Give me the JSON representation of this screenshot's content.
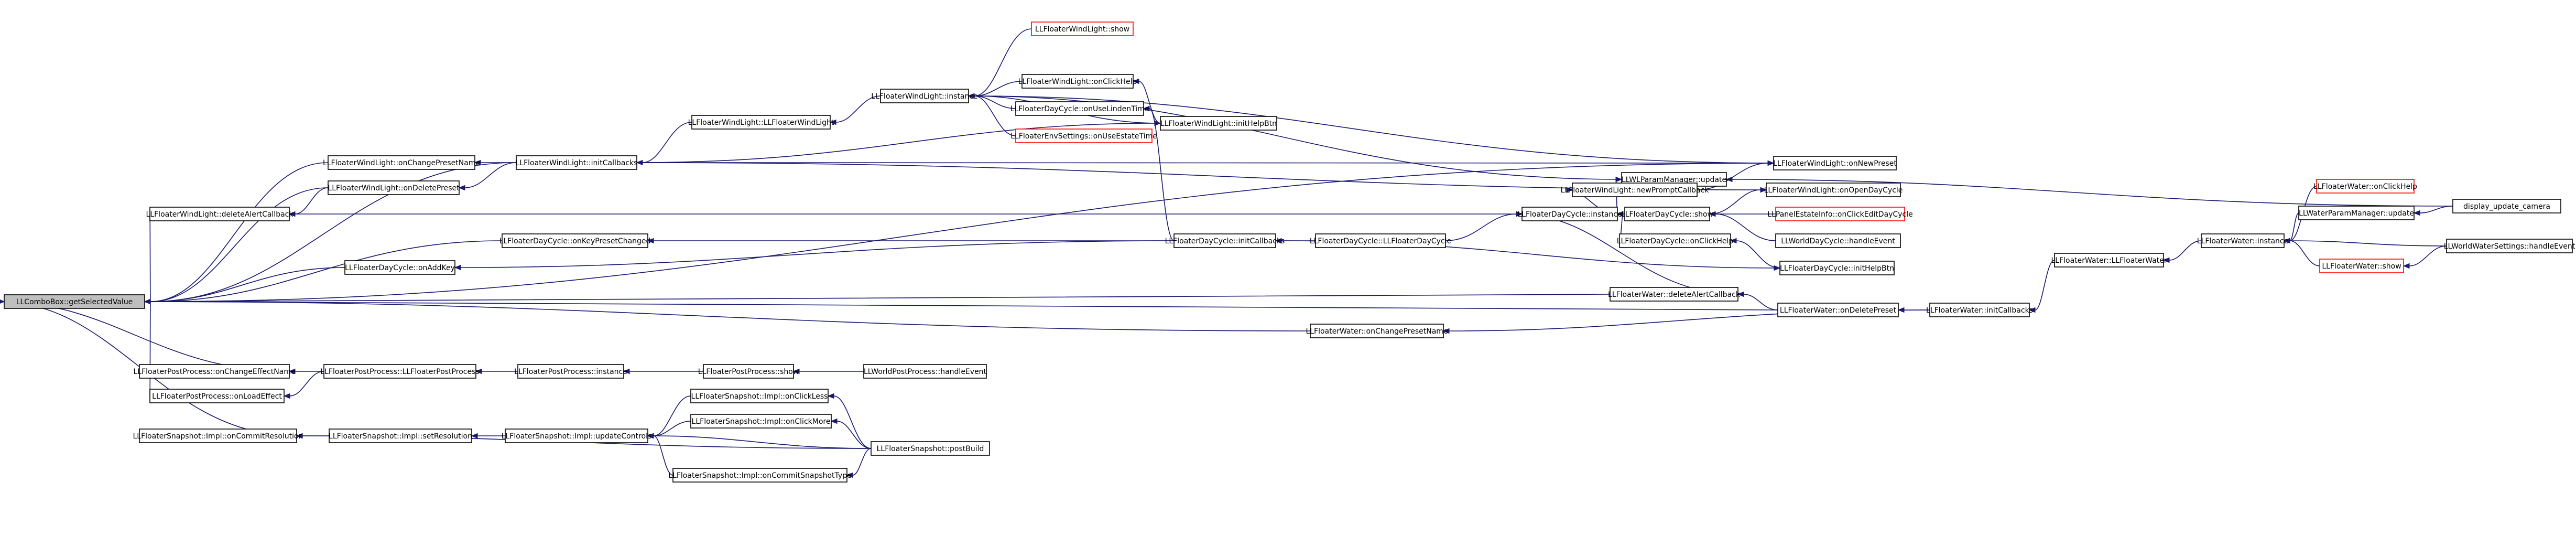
{
  "graph": {
    "root_id": "n0",
    "nodes": [
      {
        "id": "n0",
        "label": "LLComboBox::getSelectedValue",
        "style": "root"
      },
      {
        "id": "n1",
        "label": "LLFloaterWindLight::onChangePresetName",
        "style": "normal"
      },
      {
        "id": "n2",
        "label": "LLFloaterWindLight::onDeletePreset",
        "style": "normal"
      },
      {
        "id": "n3",
        "label": "LLFloaterWindLight::deleteAlertCallback",
        "style": "normal"
      },
      {
        "id": "n4",
        "label": "LLFloaterWindLight::initCallbacks",
        "style": "normal"
      },
      {
        "id": "n5",
        "label": "LLFloaterWindLight::LLFloaterWindLight",
        "style": "normal"
      },
      {
        "id": "n6",
        "label": "LLFloaterWindLight::instance",
        "style": "normal"
      },
      {
        "id": "n7",
        "label": "LLFloaterWindLight::show",
        "style": "red"
      },
      {
        "id": "n8",
        "label": "LLFloaterWindLight::onClickHelp",
        "style": "normal"
      },
      {
        "id": "n9",
        "label": "LLFloaterDayCycle::onUseLindenTime",
        "style": "normal"
      },
      {
        "id": "n10",
        "label": "LLFloaterEnvSettings::onUseEstateTime",
        "style": "red"
      },
      {
        "id": "n11",
        "label": "LLFloaterWindLight::initHelpBtn",
        "style": "normal"
      },
      {
        "id": "n12",
        "label": "LLWLParamManager::update",
        "style": "normal"
      },
      {
        "id": "n13",
        "label": "LLFloaterWindLight::onNewPreset",
        "style": "normal"
      },
      {
        "id": "n14",
        "label": "LLFloaterWindLight::newPromptCallback",
        "style": "normal"
      },
      {
        "id": "n15",
        "label": "LLFloaterWindLight::onOpenDayCycle",
        "style": "normal"
      },
      {
        "id": "n16",
        "label": "LLFloaterDayCycle::instance",
        "style": "normal"
      },
      {
        "id": "n17",
        "label": "LLFloaterDayCycle::show",
        "style": "normal"
      },
      {
        "id": "n18",
        "label": "LLPanelEstateInfo::onClickEditDayCycle",
        "style": "red"
      },
      {
        "id": "n19",
        "label": "LLWorldDayCycle::handleEvent",
        "style": "normal"
      },
      {
        "id": "n20",
        "label": "LLFloaterDayCycle::onClickHelp",
        "style": "normal"
      },
      {
        "id": "n21",
        "label": "LLFloaterDayCycle::initHelpBtn",
        "style": "normal"
      },
      {
        "id": "n22",
        "label": "LLFloaterDayCycle::onKeyPresetChanged",
        "style": "normal"
      },
      {
        "id": "n23",
        "label": "LLFloaterDayCycle::onAddKey",
        "style": "normal"
      },
      {
        "id": "n24",
        "label": "LLFloaterDayCycle::initCallbacks",
        "style": "normal"
      },
      {
        "id": "n25",
        "label": "LLFloaterDayCycle::LLFloaterDayCycle",
        "style": "normal"
      },
      {
        "id": "n26",
        "label": "LLFloaterWater::deleteAlertCallback",
        "style": "normal"
      },
      {
        "id": "n27",
        "label": "LLFloaterWater::onDeletePreset",
        "style": "normal"
      },
      {
        "id": "n28",
        "label": "LLFloaterWater::initCallbacks",
        "style": "normal"
      },
      {
        "id": "n29",
        "label": "LLFloaterWater::LLFloaterWater",
        "style": "normal"
      },
      {
        "id": "n30",
        "label": "LLFloaterWater::instance",
        "style": "normal"
      },
      {
        "id": "n31",
        "label": "LLFloaterWater::onClickHelp",
        "style": "red"
      },
      {
        "id": "n32",
        "label": "LLWaterParamManager::update",
        "style": "normal"
      },
      {
        "id": "n33",
        "label": "LLFloaterWater::show",
        "style": "red"
      },
      {
        "id": "n34",
        "label": "display_update_camera",
        "style": "normal"
      },
      {
        "id": "n35",
        "label": "LLWorldWaterSettings::handleEvent",
        "style": "normal"
      },
      {
        "id": "n36",
        "label": "LLFloaterWater::onChangePresetName",
        "style": "normal"
      },
      {
        "id": "n37",
        "label": "LLFloaterPostProcess::onChangeEffectName",
        "style": "normal"
      },
      {
        "id": "n38",
        "label": "LLFloaterPostProcess::onLoadEffect",
        "style": "normal"
      },
      {
        "id": "n39",
        "label": "LLFloaterPostProcess::LLFloaterPostProcess",
        "style": "normal"
      },
      {
        "id": "n40",
        "label": "LLFloaterPostProcess::instance",
        "style": "normal"
      },
      {
        "id": "n41",
        "label": "LLFloaterPostProcess::show",
        "style": "normal"
      },
      {
        "id": "n42",
        "label": "LLWorldPostProcess::handleEvent",
        "style": "normal"
      },
      {
        "id": "n43",
        "label": "LLFloaterSnapshot::Impl::onCommitResolution",
        "style": "normal"
      },
      {
        "id": "n44",
        "label": "LLFloaterSnapshot::Impl::setResolution",
        "style": "normal"
      },
      {
        "id": "n45",
        "label": "LLFloaterSnapshot::Impl::updateControls",
        "style": "normal"
      },
      {
        "id": "n46",
        "label": "LLFloaterSnapshot::Impl::onClickLess",
        "style": "normal"
      },
      {
        "id": "n47",
        "label": "LLFloaterSnapshot::Impl::onClickMore",
        "style": "normal"
      },
      {
        "id": "n48",
        "label": "LLFloaterSnapshot::Impl::onCommitSnapshotType",
        "style": "normal"
      },
      {
        "id": "n49",
        "label": "LLFloaterSnapshot::postBuild",
        "style": "normal"
      }
    ],
    "edges": [
      [
        "n1",
        "n0"
      ],
      [
        "n2",
        "n0"
      ],
      [
        "n3",
        "n0"
      ],
      [
        "n4",
        "n0"
      ],
      [
        "n13",
        "n0"
      ],
      [
        "n22",
        "n0"
      ],
      [
        "n23",
        "n0"
      ],
      [
        "n26",
        "n0"
      ],
      [
        "n27",
        "n0"
      ],
      [
        "n36",
        "n0"
      ],
      [
        "n37",
        "n0"
      ],
      [
        "n38",
        "n0"
      ],
      [
        "n43",
        "n0"
      ],
      [
        "n4",
        "n1"
      ],
      [
        "n4",
        "n2"
      ],
      [
        "n2",
        "n3"
      ],
      [
        "n5",
        "n4"
      ],
      [
        "n6",
        "n5"
      ],
      [
        "n7",
        "n6"
      ],
      [
        "n8",
        "n6"
      ],
      [
        "n9",
        "n6"
      ],
      [
        "n10",
        "n6"
      ],
      [
        "n11",
        "n6"
      ],
      [
        "n12",
        "n6"
      ],
      [
        "n13",
        "n6"
      ],
      [
        "n11",
        "n8"
      ],
      [
        "n24",
        "n9"
      ],
      [
        "n4",
        "n11"
      ],
      [
        "n16",
        "n12"
      ],
      [
        "n34",
        "n12"
      ],
      [
        "n4",
        "n13"
      ],
      [
        "n14",
        "n13"
      ],
      [
        "n16",
        "n14"
      ],
      [
        "n4",
        "n15"
      ],
      [
        "n17",
        "n15"
      ],
      [
        "n3",
        "n16"
      ],
      [
        "n17",
        "n16"
      ],
      [
        "n20",
        "n16"
      ],
      [
        "n25",
        "n16"
      ],
      [
        "n26",
        "n16"
      ],
      [
        "n18",
        "n17"
      ],
      [
        "n19",
        "n17"
      ],
      [
        "n21",
        "n20"
      ],
      [
        "n24",
        "n21"
      ],
      [
        "n24",
        "n22"
      ],
      [
        "n24",
        "n23"
      ],
      [
        "n25",
        "n24"
      ],
      [
        "n27",
        "n26"
      ],
      [
        "n28",
        "n27"
      ],
      [
        "n29",
        "n28"
      ],
      [
        "n30",
        "n29"
      ],
      [
        "n28",
        "n36"
      ],
      [
        "n31",
        "n30"
      ],
      [
        "n32",
        "n30"
      ],
      [
        "n33",
        "n30"
      ],
      [
        "n35",
        "n30"
      ],
      [
        "n34",
        "n32"
      ],
      [
        "n35",
        "n33"
      ],
      [
        "n39",
        "n37"
      ],
      [
        "n39",
        "n38"
      ],
      [
        "n40",
        "n39"
      ],
      [
        "n41",
        "n40"
      ],
      [
        "n42",
        "n41"
      ],
      [
        "n44",
        "n43"
      ],
      [
        "n49",
        "n43"
      ],
      [
        "n45",
        "n44"
      ],
      [
        "n46",
        "n45"
      ],
      [
        "n47",
        "n45"
      ],
      [
        "n48",
        "n45"
      ],
      [
        "n49",
        "n45"
      ],
      [
        "n49",
        "n46"
      ],
      [
        "n49",
        "n47"
      ],
      [
        "n49",
        "n48"
      ]
    ]
  }
}
